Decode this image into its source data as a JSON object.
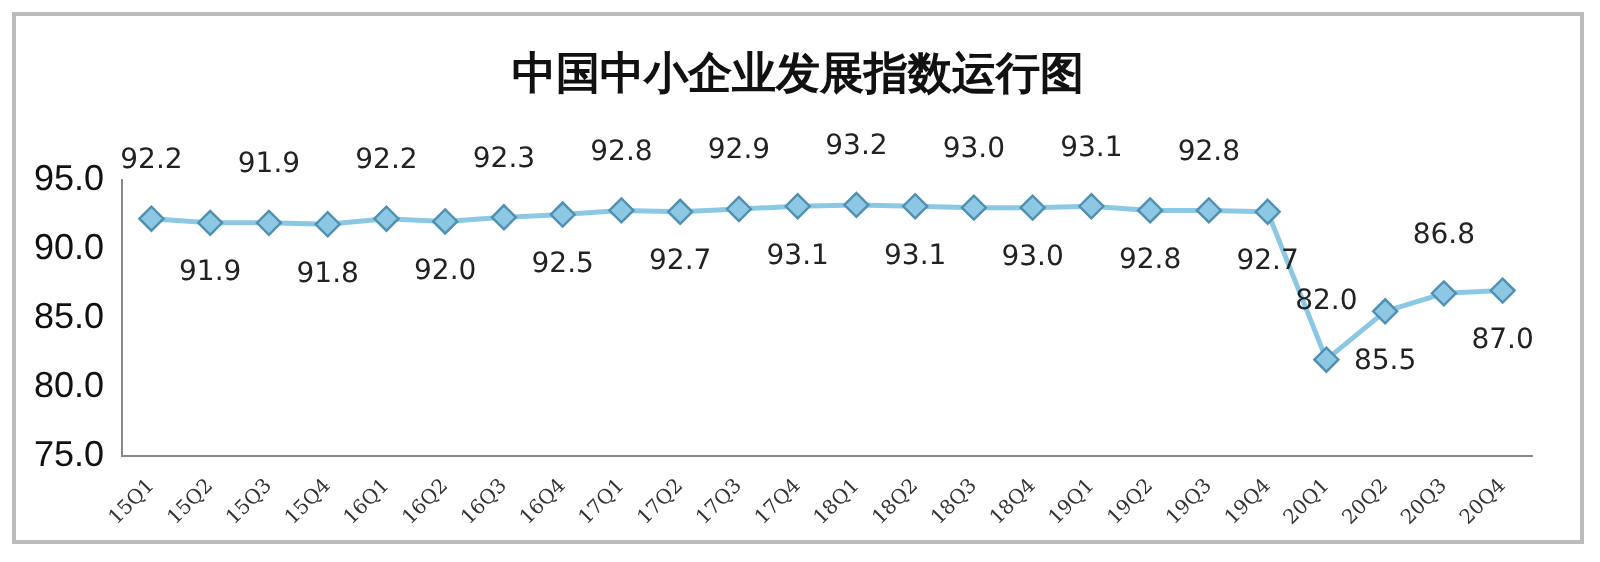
{
  "chart_data": {
    "type": "line",
    "title": "中国中小企业发展指数运行图",
    "categories": [
      "15Q1",
      "15Q2",
      "15Q3",
      "15Q4",
      "16Q1",
      "16Q2",
      "16Q3",
      "16Q4",
      "17Q1",
      "17Q2",
      "17Q3",
      "17Q4",
      "18Q1",
      "18Q2",
      "18Q3",
      "18Q4",
      "19Q1",
      "19Q2",
      "19Q3",
      "19Q4",
      "20Q1",
      "20Q2",
      "20Q3",
      "20Q4"
    ],
    "series": [
      {
        "color": "#8cc8e4",
        "values": [
          92.2,
          91.9,
          91.9,
          91.8,
          92.2,
          92.0,
          92.3,
          92.5,
          92.8,
          92.7,
          92.9,
          93.1,
          93.2,
          93.1,
          93.0,
          93.0,
          93.1,
          92.8,
          92.8,
          92.7,
          82.0,
          85.5,
          86.8,
          87.0
        ],
        "value_labels": [
          "92.2",
          "91.9",
          "91.9",
          "91.8",
          "92.2",
          "92.0",
          "92.3",
          "92.5",
          "92.8",
          "92.7",
          "92.9",
          "93.1",
          "93.2",
          "93.1",
          "93.0",
          "93.0",
          "93.1",
          "92.8",
          "92.8",
          "92.7",
          "82.0",
          "85.5",
          "86.8",
          "87.0"
        ]
      }
    ],
    "ylim": [
      75,
      95
    ],
    "yticks": [
      {
        "value": 75,
        "label": "75.0"
      },
      {
        "value": 80,
        "label": "80.0"
      },
      {
        "value": 85,
        "label": "85.0"
      },
      {
        "value": 90,
        "label": "90.0"
      },
      {
        "value": 95,
        "label": "95.0"
      }
    ],
    "grid": false,
    "legend": false,
    "marker": "diamond",
    "line_style": "solid"
  }
}
